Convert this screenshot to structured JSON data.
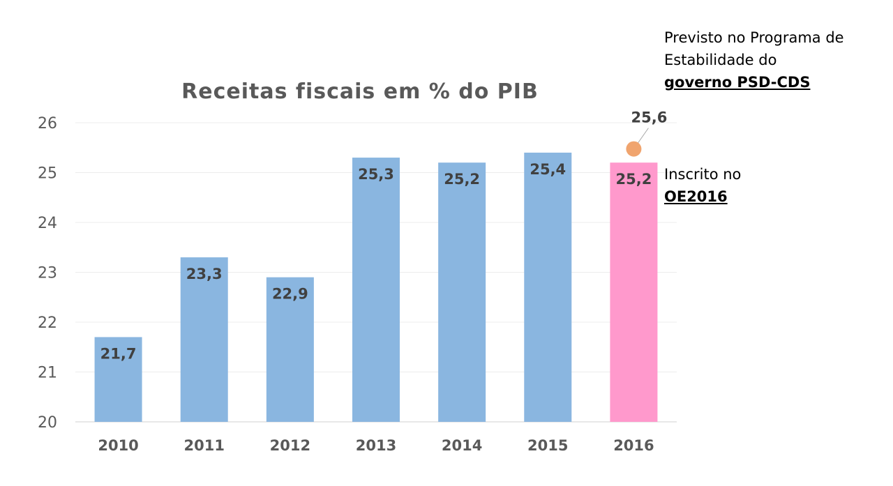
{
  "chart_data": {
    "type": "bar",
    "title": "Receitas fiscais em % do PIB",
    "xlabel": "",
    "ylabel": "",
    "categories": [
      "2010",
      "2011",
      "2012",
      "2013",
      "2014",
      "2015",
      "2016"
    ],
    "values": [
      21.7,
      23.3,
      22.9,
      25.3,
      25.2,
      25.4,
      25.2
    ],
    "value_labels": [
      "21,7",
      "23,3",
      "22,9",
      "25,3",
      "25,2",
      "25,4",
      "25,2"
    ],
    "ylim": [
      20,
      26
    ],
    "yticks": [
      20,
      21,
      22,
      23,
      24,
      25,
      26
    ],
    "grid": true,
    "legend": "none",
    "colors": {
      "bar": "#8AB6E0",
      "highlight_bar": "#FF99CC",
      "point": "#F0A46E",
      "title": "#595959",
      "labels": "#404040"
    },
    "highlight_category": "2016",
    "extra_point": {
      "category": "2016",
      "value": 25.6,
      "label": "25,6"
    },
    "annotations": [
      {
        "lines": [
          "Previsto no Programa de",
          "Estabilidade do"
        ],
        "bold": "governo PSD-CDS"
      },
      {
        "lines": [
          "Inscrito no"
        ],
        "bold": "OE2016"
      }
    ]
  }
}
